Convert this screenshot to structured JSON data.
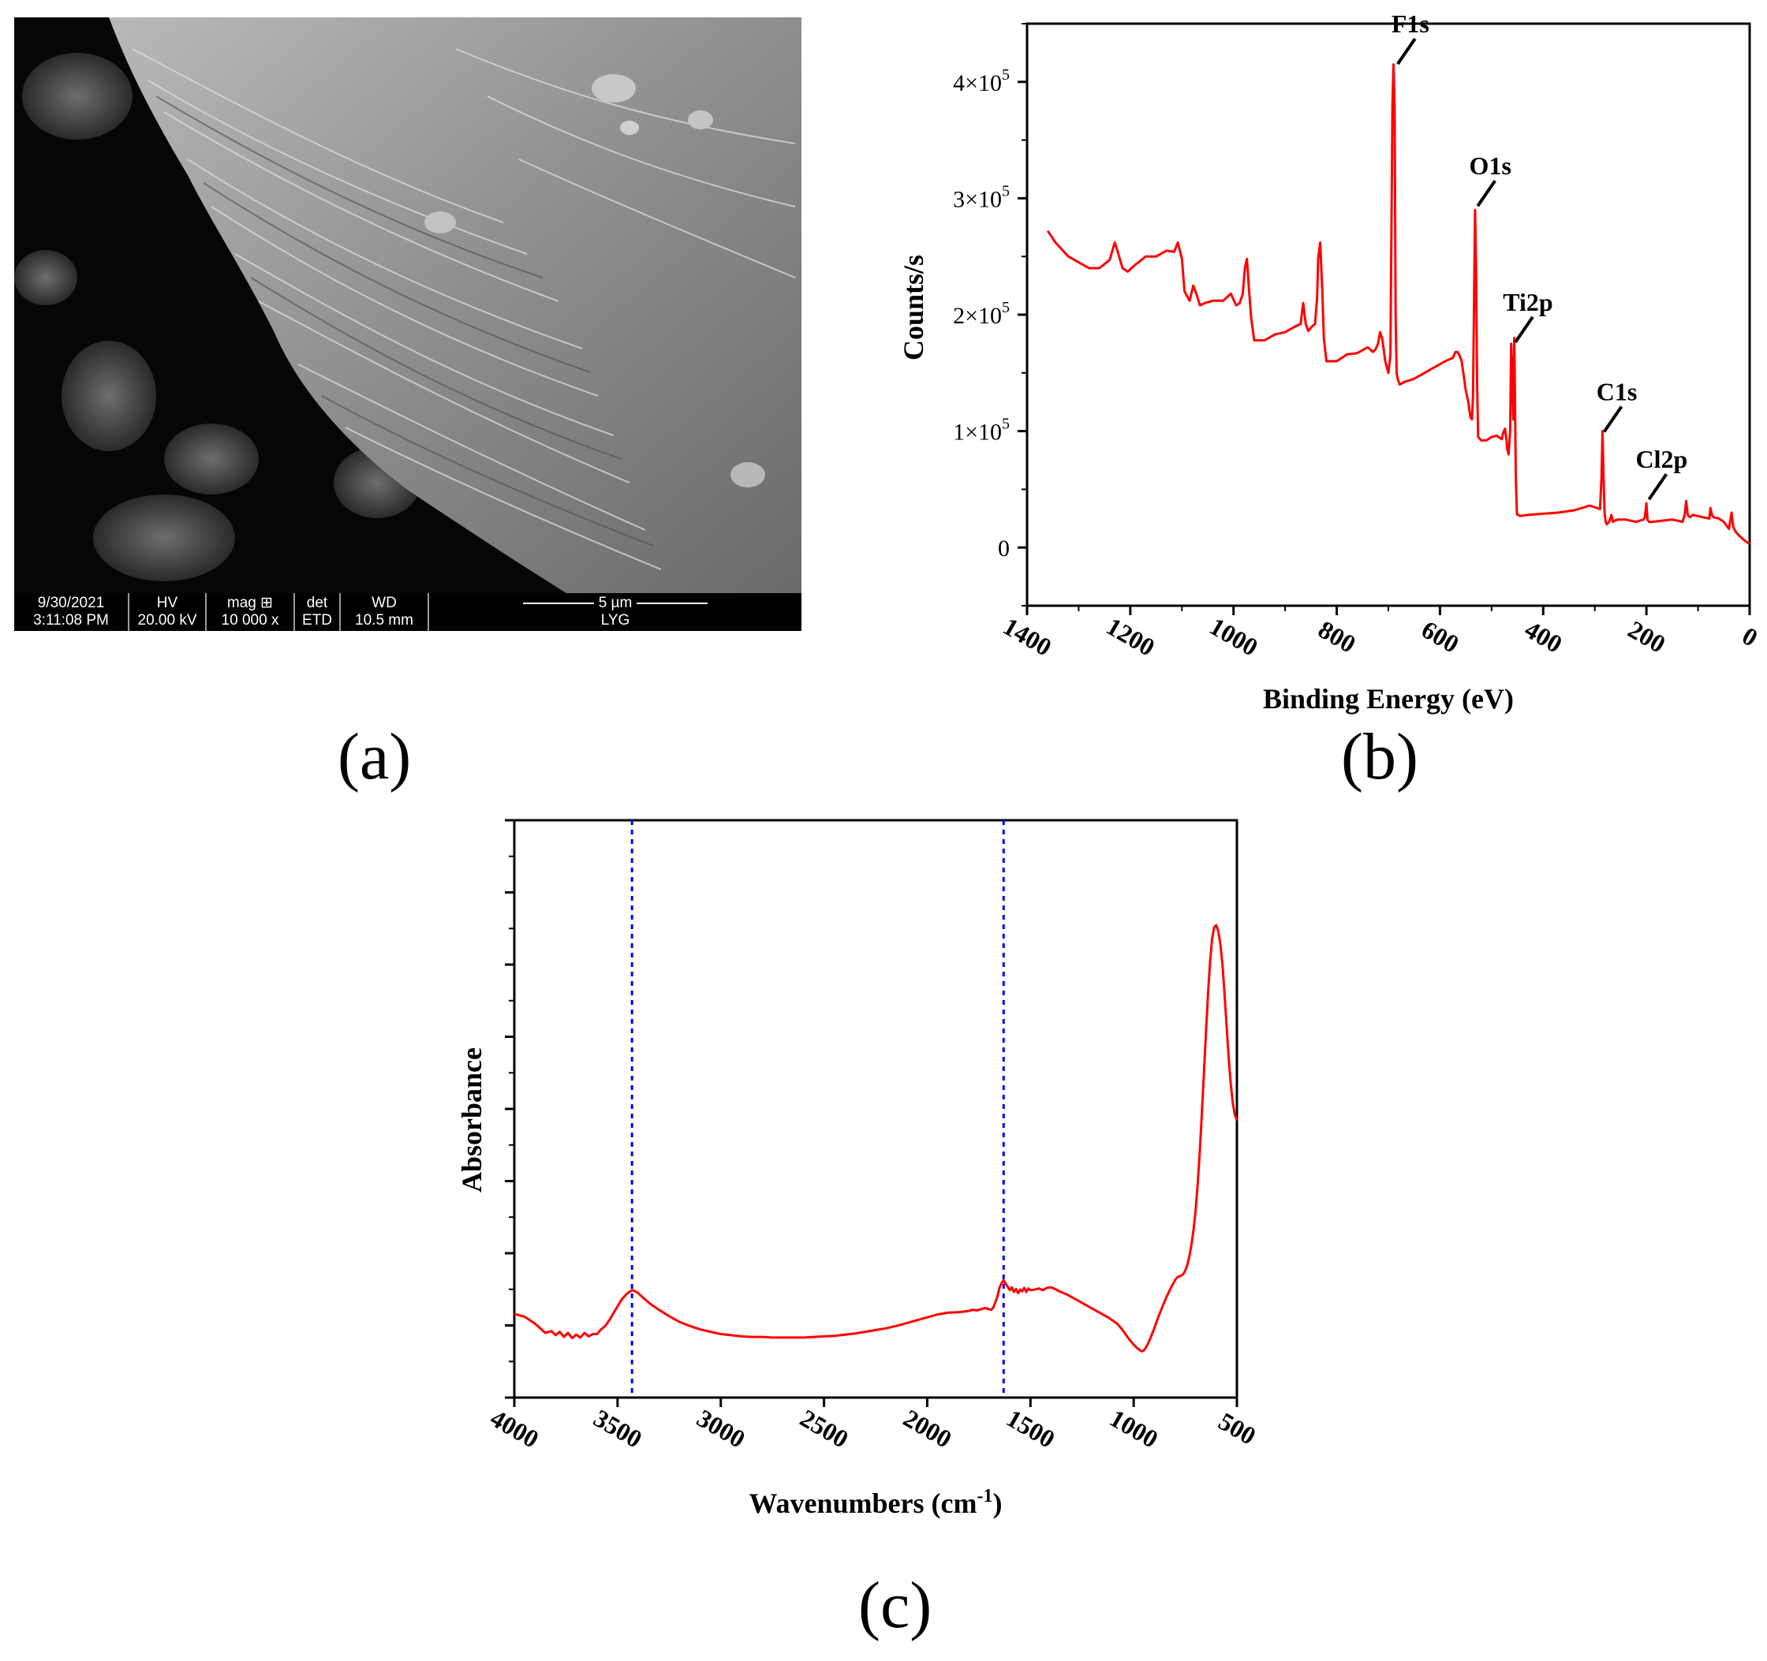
{
  "panel_labels": {
    "a": "(a)",
    "b": "(b)",
    "c": "(c)"
  },
  "sem_info": {
    "date": "9/30/2021",
    "time": "3:11:08 PM",
    "hv_label": "HV",
    "hv_value": "20.00 kV",
    "mag_label": "mag ⊞",
    "mag_value": "10 000 x",
    "det_label": "det",
    "det_value": "ETD",
    "wd_label": "WD",
    "wd_value": "10.5 mm",
    "scale_label": "5 µm",
    "operator": "LYG"
  },
  "chart_data": [
    {
      "id": "xps",
      "type": "line",
      "xlabel": "Binding Energy (eV)",
      "ylabel": "Counts/s",
      "xlim": [
        1400,
        0
      ],
      "ylim": [
        -50000,
        450000
      ],
      "x_ticks": [
        1400,
        1200,
        1000,
        800,
        600,
        400,
        200,
        0
      ],
      "y_ticks": [
        {
          "value": 0,
          "label": "0"
        },
        {
          "value": 100000,
          "label": "1×10",
          "exp": "5"
        },
        {
          "value": 200000,
          "label": "2×10",
          "exp": "5"
        },
        {
          "value": 300000,
          "label": "3×10",
          "exp": "5"
        },
        {
          "value": 400000,
          "label": "4×10",
          "exp": "5"
        }
      ],
      "color": "#ff0000",
      "series": [
        {
          "x": [
            1360,
            1345,
            1320,
            1300,
            1280,
            1260,
            1240,
            1230,
            1225,
            1215,
            1205,
            1190,
            1170,
            1150,
            1130,
            1115,
            1108,
            1100,
            1095,
            1085,
            1078,
            1072,
            1065,
            1055,
            1040,
            1020,
            1005,
            995,
            988,
            982,
            978,
            974,
            970,
            966,
            960,
            940,
            920,
            900,
            880,
            870,
            865,
            860,
            855,
            848,
            842,
            838,
            836,
            832,
            828,
            825,
            820,
            800,
            780,
            760,
            740,
            730,
            725,
            720,
            716,
            712,
            706,
            700,
            696,
            692,
            690,
            688,
            686,
            684,
            682,
            678,
            670,
            650,
            630,
            610,
            590,
            575,
            570,
            566,
            562,
            558,
            554,
            550,
            545,
            541,
            538,
            536,
            534,
            532,
            530,
            528,
            526,
            520,
            510,
            500,
            490,
            480,
            478,
            474,
            471,
            470,
            467,
            464,
            462,
            460,
            458,
            456,
            455,
            453,
            451,
            450,
            448,
            445,
            430,
            400,
            370,
            340,
            310,
            296,
            290,
            287,
            285,
            283,
            281,
            279,
            277,
            272,
            268,
            265,
            262,
            256,
            240,
            220,
            206,
            203,
            200,
            198,
            195,
            190,
            170,
            150,
            130,
            126,
            123,
            120,
            116,
            110,
            90,
            80,
            78,
            76,
            73,
            70,
            60,
            50,
            40,
            35,
            32,
            28,
            20,
            10,
            0
          ],
          "y": [
            272000,
            262000,
            250000,
            245000,
            240000,
            240000,
            247000,
            262000,
            255000,
            240000,
            237000,
            243000,
            250000,
            250000,
            255000,
            254000,
            262000,
            248000,
            220000,
            212000,
            225000,
            218000,
            208000,
            210000,
            212000,
            212000,
            218000,
            208000,
            210000,
            218000,
            240000,
            248000,
            222000,
            198000,
            178000,
            178000,
            183000,
            185000,
            190000,
            192000,
            210000,
            192000,
            186000,
            190000,
            192000,
            215000,
            248000,
            262000,
            220000,
            180000,
            160000,
            160000,
            166000,
            167000,
            172000,
            168000,
            170000,
            175000,
            185000,
            180000,
            160000,
            150000,
            165000,
            380000,
            415000,
            380000,
            200000,
            150000,
            145000,
            140000,
            142000,
            145000,
            150000,
            155000,
            160000,
            163000,
            168000,
            168000,
            165000,
            160000,
            148000,
            135000,
            125000,
            112000,
            110000,
            130000,
            210000,
            290000,
            240000,
            140000,
            95000,
            92000,
            92000,
            95000,
            96000,
            93000,
            98000,
            102000,
            92000,
            85000,
            80000,
            100000,
            175000,
            150000,
            110000,
            180000,
            140000,
            60000,
            30000,
            28000,
            28000,
            27000,
            28000,
            29000,
            30000,
            32000,
            36000,
            34000,
            33000,
            60000,
            100000,
            60000,
            30000,
            22000,
            20000,
            22000,
            28000,
            22000,
            23000,
            24000,
            24000,
            22000,
            24000,
            26000,
            38000,
            24000,
            22000,
            22000,
            23000,
            24000,
            22000,
            28000,
            40000,
            28000,
            26000,
            28000,
            26000,
            25000,
            25000,
            34000,
            28000,
            26000,
            25000,
            22000,
            16000,
            30000,
            18000,
            14000,
            10000,
            6000,
            3000
          ]
        }
      ],
      "annotations": [
        {
          "label": "F1s",
          "x": 685,
          "y": 414000
        },
        {
          "label": "O1s",
          "x": 530,
          "y": 292000
        },
        {
          "label": "Ti2p",
          "x": 457,
          "y": 175000
        },
        {
          "label": "C1s",
          "x": 285,
          "y": 98000
        },
        {
          "label": "Cl2p",
          "x": 198,
          "y": 40000
        }
      ]
    },
    {
      "id": "ftir",
      "type": "line",
      "xlabel": "Wavenumbers (cm",
      "xlabel_sup": "-1",
      "xlabel_tail": ")",
      "ylabel": "Absorbance",
      "xlim": [
        4000,
        500
      ],
      "ylim": [
        0,
        1
      ],
      "x_ticks": [
        4000,
        3500,
        3000,
        2500,
        2000,
        1500,
        1000,
        500
      ],
      "color": "#ff0000",
      "marker_lines": [
        3430,
        1630
      ],
      "marker_color": "#0000ff",
      "series": [
        {
          "x": [
            4000,
            3950,
            3900,
            3850,
            3820,
            3800,
            3780,
            3760,
            3740,
            3720,
            3700,
            3680,
            3660,
            3640,
            3620,
            3600,
            3580,
            3560,
            3540,
            3520,
            3500,
            3480,
            3460,
            3440,
            3430,
            3420,
            3400,
            3380,
            3360,
            3340,
            3300,
            3250,
            3200,
            3150,
            3100,
            3050,
            3000,
            2950,
            2900,
            2850,
            2800,
            2750,
            2700,
            2650,
            2600,
            2550,
            2500,
            2450,
            2400,
            2350,
            2300,
            2250,
            2200,
            2150,
            2100,
            2050,
            2000,
            1950,
            1900,
            1850,
            1800,
            1780,
            1760,
            1740,
            1720,
            1700,
            1690,
            1680,
            1670,
            1660,
            1650,
            1640,
            1630,
            1620,
            1610,
            1600,
            1590,
            1580,
            1570,
            1560,
            1550,
            1540,
            1530,
            1520,
            1510,
            1500,
            1480,
            1460,
            1440,
            1420,
            1400,
            1380,
            1360,
            1340,
            1320,
            1300,
            1280,
            1260,
            1240,
            1220,
            1200,
            1180,
            1160,
            1140,
            1120,
            1100,
            1080,
            1060,
            1040,
            1020,
            1000,
            990,
            980,
            970,
            960,
            950,
            940,
            930,
            920,
            910,
            900,
            890,
            880,
            860,
            840,
            820,
            800,
            790,
            780,
            770,
            760,
            750,
            740,
            730,
            720,
            710,
            700,
            690,
            680,
            670,
            660,
            650,
            640,
            630,
            620,
            610,
            600,
            590,
            580,
            570,
            560,
            550,
            540,
            530,
            520,
            510,
            500
          ],
          "y": [
            0.145,
            0.14,
            0.128,
            0.112,
            0.115,
            0.108,
            0.114,
            0.105,
            0.112,
            0.103,
            0.109,
            0.104,
            0.112,
            0.106,
            0.11,
            0.11,
            0.118,
            0.124,
            0.134,
            0.146,
            0.158,
            0.17,
            0.178,
            0.184,
            0.186,
            0.185,
            0.181,
            0.174,
            0.168,
            0.162,
            0.152,
            0.141,
            0.131,
            0.124,
            0.118,
            0.114,
            0.11,
            0.108,
            0.106,
            0.105,
            0.105,
            0.104,
            0.104,
            0.104,
            0.104,
            0.105,
            0.106,
            0.107,
            0.109,
            0.111,
            0.114,
            0.117,
            0.12,
            0.124,
            0.129,
            0.134,
            0.139,
            0.144,
            0.147,
            0.148,
            0.15,
            0.152,
            0.151,
            0.153,
            0.155,
            0.153,
            0.152,
            0.156,
            0.165,
            0.175,
            0.19,
            0.198,
            0.203,
            0.197,
            0.192,
            0.186,
            0.191,
            0.183,
            0.188,
            0.181,
            0.187,
            0.184,
            0.19,
            0.183,
            0.189,
            0.186,
            0.187,
            0.189,
            0.186,
            0.19,
            0.191,
            0.188,
            0.184,
            0.181,
            0.178,
            0.174,
            0.17,
            0.166,
            0.162,
            0.158,
            0.154,
            0.15,
            0.146,
            0.142,
            0.138,
            0.133,
            0.128,
            0.12,
            0.11,
            0.1,
            0.092,
            0.088,
            0.085,
            0.082,
            0.08,
            0.082,
            0.087,
            0.094,
            0.102,
            0.111,
            0.12,
            0.13,
            0.14,
            0.158,
            0.175,
            0.19,
            0.203,
            0.208,
            0.21,
            0.211,
            0.214,
            0.22,
            0.23,
            0.245,
            0.265,
            0.29,
            0.325,
            0.37,
            0.425,
            0.49,
            0.56,
            0.63,
            0.7,
            0.755,
            0.795,
            0.815,
            0.818,
            0.808,
            0.785,
            0.75,
            0.7,
            0.645,
            0.59,
            0.545,
            0.51,
            0.49,
            0.48
          ]
        }
      ]
    }
  ]
}
